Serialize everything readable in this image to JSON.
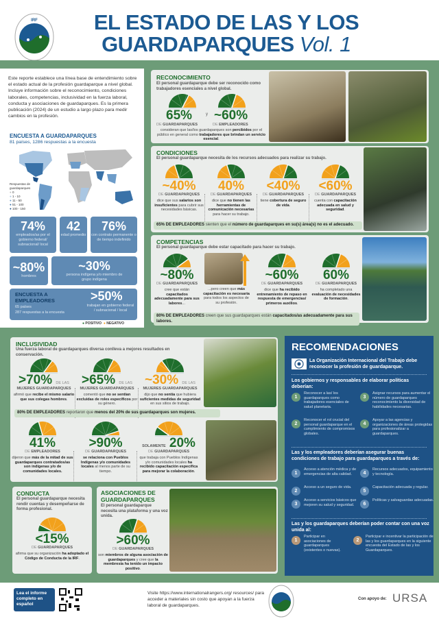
{
  "header": {
    "title_line1": "EL ESTADO DE LAS Y LOS",
    "title_line2": "GUARDAPARQUES",
    "title_vol": "Vol. 1",
    "logo_text": "IRF"
  },
  "colors": {
    "positive": "#1f6e2c",
    "negative": "#f2a11c",
    "brand_blue": "#1c5a92",
    "background_green": "#6d9c78"
  },
  "intro": {
    "text": "Este reporte establece una línea base de entendimiento sobre el estado actual de la profesión guardaparque a nivel global. Incluye información sobre el reconocimiento, condiciones laborales, competencias, inclusividad en la fuerza laboral, conducta y asociaciones de guardaparques. Es la primera publicación (2024) de un estudio a largo plazo para medir cambios en la profesión.",
    "survey_title": "ENCUESTA A GUARDAPARQUES",
    "survey_sub": "81 países, 1286 respuestas a la encuesta",
    "map_legend": {
      "title": "Respuestas de guardaparques",
      "items": [
        {
          "label": "0",
          "color": "#bdbdbd"
        },
        {
          "label": "1 - 10",
          "color": "#a9c6e2"
        },
        {
          "label": "11 - 50",
          "color": "#6d9cc9"
        },
        {
          "label": "51 - 100",
          "color": "#3a72a8"
        },
        {
          "label": "100 - 150",
          "color": "#1c4f86"
        }
      ]
    },
    "stats": [
      {
        "value": "74%",
        "text": "empleados/as por el gobierno federal/ subnacional/ local"
      },
      {
        "value": "42",
        "text": "edad promedio"
      },
      {
        "value": "76%",
        "text": "con contrato permanente o de tiempo indefinido"
      },
      {
        "value": "~80%",
        "text": "hombres"
      },
      {
        "value": "~30%",
        "text": "persona indígena y/o miembro de grupo indígena"
      }
    ],
    "employers": {
      "title": "ENCUESTA A EMPLEADORES",
      "countries": "65 países",
      "responses": "287 respuestas a la encuesta",
      "value": ">50%",
      "text": "trabajan en gobierno federal / subnacional / local"
    },
    "legend": {
      "positive": "POSITIVO",
      "negative": "NEGATIVO"
    }
  },
  "reconocimiento": {
    "title": "RECONOCIMIENTO",
    "subtitle": "El personal guardaparque debe ser reconocido como trabajadores esenciales a nivel global.",
    "stats": [
      {
        "value": "65%",
        "pre": "DE ",
        "who": "GUARDAPARQUES",
        "gauge": 65,
        "left": "positive"
      },
      {
        "value": "~60%",
        "pre": "DE ",
        "who": "EMPLEADORES",
        "gauge": 60,
        "left": "positive"
      }
    ],
    "joiner": "y",
    "desc": [
      {
        "t": "consideran que las/los guardaparques son "
      },
      {
        "t": "percibidos",
        "b": 1
      },
      {
        "t": " por el público en general como "
      },
      {
        "t": "trabajadores que brindan un servicio esencial",
        "b": 1
      },
      {
        "t": "."
      }
    ]
  },
  "condiciones": {
    "title": "CONDICIONES",
    "subtitle": "El personal guardaparque necesita de los recursos adecuados para realizar su trabajo.",
    "stats": [
      {
        "value": "~40%",
        "who": "GUARDAPARQUES",
        "gauge": 40,
        "left": "negative",
        "desc": [
          {
            "t": "dice que sus "
          },
          {
            "t": "salarios son insuficientes",
            "b": 1
          },
          {
            "t": " para cubrir sus necesidades básicas."
          }
        ]
      },
      {
        "value": "40%",
        "who": "GUARDAPARQUES",
        "gauge": 40,
        "left": "negative",
        "desc": [
          {
            "t": "dice que "
          },
          {
            "t": "no tienen las herramientas de comunicación necesarias",
            "b": 1
          },
          {
            "t": " para hacer su trabajo."
          }
        ]
      },
      {
        "value": "<40%",
        "who": "GUARDAPARQUES",
        "gauge": 60,
        "left": "negative",
        "desc": [
          {
            "t": "tiene "
          },
          {
            "t": "cobertura de seguro de vida",
            "b": 1
          },
          {
            "t": "."
          }
        ]
      },
      {
        "value": "<60%",
        "who": "GUARDAPARQUES",
        "gauge": 60,
        "left": "negative",
        "desc": [
          {
            "t": "cuenta con "
          },
          {
            "t": "capacitación adecuada en salud y seguridad",
            "b": 1
          },
          {
            "t": "."
          }
        ]
      }
    ],
    "note": [
      {
        "t": "65% DE EMPLEADORES",
        "b": 1
      },
      {
        "t": " sienten que el "
      },
      {
        "t": "número de guardaparques en su(s) área(s) no es el adecuado.",
        "b": 1
      }
    ]
  },
  "competencias": {
    "title": "COMPETENCIAS",
    "subtitle": "El personal guardaparque debe estar capacitado para hacer su trabajo.",
    "stats": [
      {
        "value": "~80%",
        "who": "GUARDAPARQUES",
        "gauge": 80,
        "left": "positive",
        "desc": [
          {
            "t": "cree que están "
          },
          {
            "t": "capacitados adecuadamente para sus labores",
            "b": 1
          },
          {
            "t": "..."
          }
        ]
      },
      {
        "value": "~60%",
        "who": "GUARDAPARQUES",
        "gauge": 60,
        "left": "positive",
        "desc": [
          {
            "t": "dice que "
          },
          {
            "t": "ha recibido entrenamiento de repaso en respuesta de emergencias/ primeros auxilios",
            "b": 1
          },
          {
            "t": "."
          }
        ]
      },
      {
        "value": "60%",
        "who": "GUARDAPARQUES",
        "gauge": 60,
        "left": "positive",
        "desc": [
          {
            "t": "ha completado una "
          },
          {
            "t": "evaluación de necesidades de formación",
            "b": 1
          },
          {
            "t": "."
          }
        ]
      }
    ],
    "more": [
      {
        "t": "...pero creen que "
      },
      {
        "t": "más capacitación es necesaria",
        "b": 1
      },
      {
        "t": " para todos los aspectos de su profesión."
      }
    ],
    "note": [
      {
        "t": "80% DE EMPLEADORES",
        "b": 1
      },
      {
        "t": " creen que sus guardaparques están "
      },
      {
        "t": "capacitados/as adecuadamente para sus labores.",
        "b": 1
      }
    ]
  },
  "inclusividad": {
    "title": "INCLUSIVIDAD",
    "subtitle": "Una fuerza laboral de guardaparques diversa conlleva a mejores resultados en conservación.",
    "stats": [
      {
        "value": ">70%",
        "suffix": "DE LAS",
        "who": "MUJERES GUARDAPARQUES",
        "gauge": 70,
        "left": "positive",
        "desc": [
          {
            "t": "afirmó que "
          },
          {
            "t": "recibe el mismo salario que sus colegas hombres",
            "b": 1
          },
          {
            "t": "."
          }
        ]
      },
      {
        "value": ">65%",
        "suffix": "DE LAS",
        "who": "MUJERES GUARDAPARQUES",
        "gauge": 65,
        "left": "positive",
        "desc": [
          {
            "t": "comentó que "
          },
          {
            "t": "no se sentían excluidas de roles específicos",
            "b": 1
          },
          {
            "t": " por su género."
          }
        ]
      },
      {
        "value": "~30%",
        "suffix": "DE LAS",
        "who": "MUJERES GUARDAPARQUES",
        "gauge": 30,
        "left": "negative",
        "desc": [
          {
            "t": "dijo que "
          },
          {
            "t": "no sentía",
            "b": 1
          },
          {
            "t": " que hubiera "
          },
          {
            "t": "suficientes medidas de seguridad",
            "b": 1
          },
          {
            "t": " en sus sitios de trabajo."
          }
        ]
      }
    ],
    "note": [
      {
        "t": "80% DE EMPLEADORES",
        "b": 1
      },
      {
        "t": " reportaron que "
      },
      {
        "t": "menos del 20% de sus guardaparques son mujeres.",
        "b": 1
      }
    ],
    "stats2": [
      {
        "value": "41%",
        "who": "EMPLEADORES",
        "gauge": 41,
        "left": "positive",
        "desc": [
          {
            "t": "dijeron que "
          },
          {
            "t": "más de la mitad de sus guardaparques contratados/as son indígenas y/o de comunidades locales.",
            "b": 1
          }
        ]
      },
      {
        "value": ">90%",
        "who": "GUARDAPARQUES",
        "gauge": 90,
        "left": "positive",
        "desc": [
          {
            "t": "se relaciona con Pueblos Indígenas y/o comunidades locales",
            "b": 1
          },
          {
            "t": " al menos parte de su tiempo."
          }
        ]
      },
      {
        "prefix": "SOLAMENTE",
        "value": "20%",
        "who": "GUARDAPARQUES",
        "gauge": 20,
        "left": "positive",
        "desc": [
          {
            "t": "que trabaja con Pueblos Indígenas y/o comunidades locales "
          },
          {
            "t": "ha recibido capacitación específica para mejorar la colaboración",
            "b": 1
          },
          {
            "t": "."
          }
        ]
      }
    ]
  },
  "conducta": {
    "title": "CONDUCTA",
    "subtitle": "El personal guardaparque necesita rendir cuentas y desempeñarse de forma profesional.",
    "stat": {
      "value": "<15%",
      "who": "GUARDAPARQUES",
      "gauge": 15,
      "left": "positive",
      "desc": [
        {
          "t": "afirma que su organización "
        },
        {
          "t": "ha adoptado el Código de Conducta de la IRF",
          "b": 1
        },
        {
          "t": "."
        }
      ]
    }
  },
  "asociaciones": {
    "title": "ASOCIACIONES DE GUARDAPARQUES",
    "subtitle": "El personal guardaparque necesita una plataforma y una voz unida.",
    "stat": {
      "value": ">60%",
      "who": "GUARDAPARQUES",
      "gauge": 60,
      "left": "positive",
      "desc": [
        {
          "t": "son "
        },
        {
          "t": "miembros de alguna asociación de guardaparques",
          "b": 1
        },
        {
          "t": " y cree que "
        },
        {
          "t": "la membresía ha tenido un impacto positivo",
          "b": 1
        },
        {
          "t": "."
        }
      ]
    }
  },
  "recomendaciones": {
    "title": "RECOMENDACIONES",
    "ilo": "La Organización Internacional del Trabajo debe reconocer la profesión de guardaparque.",
    "gov_heading": "Los gobiernos y responsables de elaborar políticas deberían:",
    "gov_items": [
      "Reconocer a las/ los guardaparques como trabajadores esenciales de salud planetaria.",
      "Reconocer el rol crucial del personal guardaparque en el cumplimiento de compromisos globales.",
      "Asignar recursos para aumentar el número de guardaparques reconocimiento la diversidad de habilidades necesarias.",
      "Apoyar a las agencias y organizaciones de áreas protegidas para profesionalizar a guardaparques."
    ],
    "emp_heading": "Las y los empleadores deberían asegurar buenas condiciones de trabajo para guardaparques a través de:",
    "emp_items": [
      "Acceso a atención médica y de emergencias de alta calidad.",
      "Acceso a un seguro de vida.",
      "Acceso a servicios básicos que mejoren su salud y seguridad.",
      "Recursos adecuados, equipamiento y tecnología.",
      "Capacitación adecuada y regular.",
      "Políticas y salvaguardas adecuadas."
    ],
    "rng_heading": "Las y los guardaparques deberían poder contar con una voz unida al:",
    "rng_items": [
      "Participar en asociaciones de guardaparques (existentes o nuevas).",
      "Participar e incentivar la participación de las y los guardaparques en la siguiente encuesta del Estado de las y los Guardaparques."
    ]
  },
  "footer": {
    "read_report": "Lea el informe completo en español",
    "visit": "Visite https://www.internationalrangers.org/ resources/ para acceder a materiales sin costo que apoyan a la fuerza laboral de guardaparques.",
    "support": "Con apoyo de:",
    "sponsor_logo": "URSA"
  }
}
